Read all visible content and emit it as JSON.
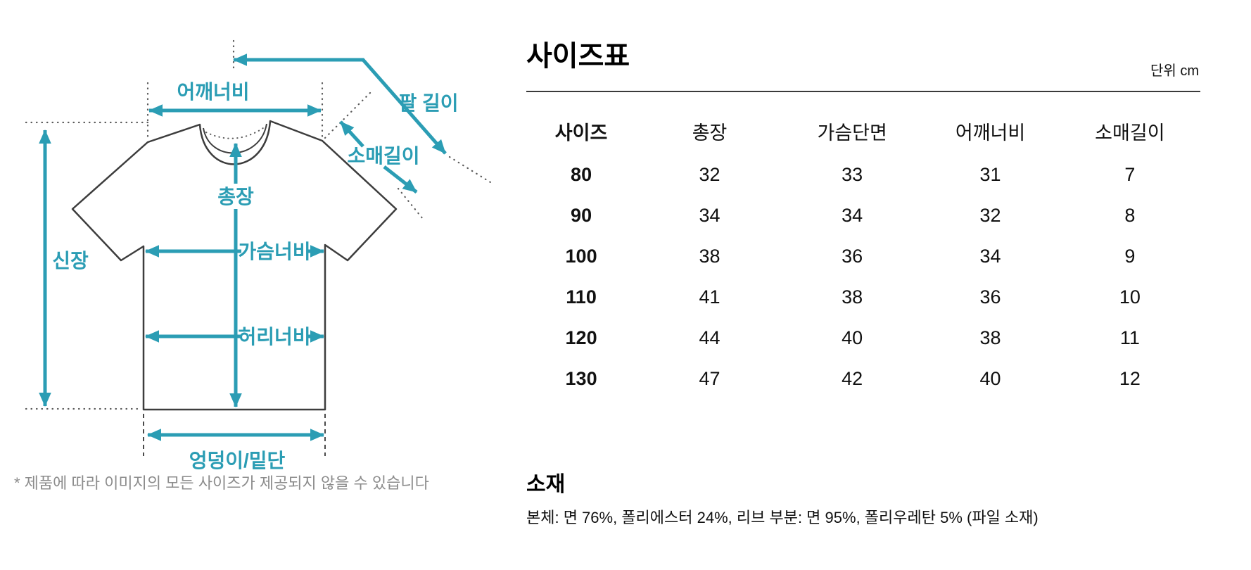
{
  "page": {
    "background": "#ffffff"
  },
  "diagram": {
    "accent_color": "#2B9DB4",
    "outline_color": "#3d3d3d",
    "guide_color": "#5a5a5a",
    "labels": {
      "shoulder_width": "어깨너비",
      "arm_length": "팔 길이",
      "sleeve_length": "소매길이",
      "total_length": "총장",
      "chest_width": "가슴너비",
      "height": "신장",
      "waist_width": "허리너비",
      "hip_hem": "엉덩이/밑단"
    },
    "footnote": "* 제품에 따라 이미지의 모든 사이즈가 제공되지 않을 수 있습니다"
  },
  "size_table": {
    "title": "사이즈표",
    "unit_label": "단위 cm",
    "columns": [
      "사이즈",
      "총장",
      "가슴단면",
      "어깨너비",
      "소매길이"
    ],
    "rows": [
      [
        "80",
        "32",
        "33",
        "31",
        "7"
      ],
      [
        "90",
        "34",
        "34",
        "32",
        "8"
      ],
      [
        "100",
        "38",
        "36",
        "34",
        "9"
      ],
      [
        "110",
        "41",
        "38",
        "36",
        "10"
      ],
      [
        "120",
        "44",
        "40",
        "38",
        "11"
      ],
      [
        "130",
        "47",
        "42",
        "40",
        "12"
      ]
    ]
  },
  "materials": {
    "title": "소재",
    "description": "본체: 면 76%, 폴리에스터 24%, 리브 부분: 면 95%, 폴리우레탄 5% (파일 소재)"
  }
}
